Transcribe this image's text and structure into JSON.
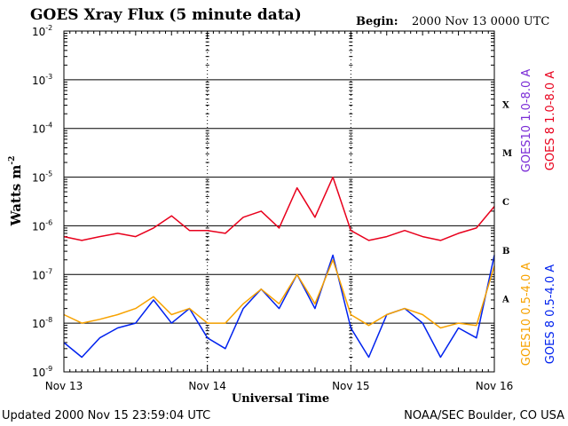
{
  "header": {
    "title": "GOES Xray Flux (5 minute data)",
    "begin_label": "Begin:",
    "begin_value": "2000 Nov 13 0000 UTC"
  },
  "footer": {
    "updated": "Updated 2000 Nov 15 23:59:04 UTC",
    "credit": "NOAA/SEC Boulder, CO USA"
  },
  "colors": {
    "goes10_long": "#7a2bd6",
    "goes8_long": "#e8001c",
    "goes10_short": "#f7a200",
    "goes8_short": "#0022ee",
    "axes": "#000000"
  },
  "chart_data": {
    "type": "line",
    "title": "GOES Xray Flux (5 minute data)",
    "xlabel": "Universal Time",
    "ylabel": "Watts m",
    "ylabel_superscript": "-2",
    "yscale": "log",
    "ylim": [
      1e-09,
      0.01
    ],
    "y_ticks": [
      {
        "base": "10",
        "exp": "-2",
        "value": 0.01
      },
      {
        "base": "10",
        "exp": "-3",
        "value": 0.001
      },
      {
        "base": "10",
        "exp": "-4",
        "value": 0.0001
      },
      {
        "base": "10",
        "exp": "-5",
        "value": 1e-05
      },
      {
        "base": "10",
        "exp": "-6",
        "value": 1e-06
      },
      {
        "base": "10",
        "exp": "-7",
        "value": 1e-07
      },
      {
        "base": "10",
        "exp": "-8",
        "value": 1e-08
      },
      {
        "base": "10",
        "exp": "-9",
        "value": 1e-09
      }
    ],
    "x_ticks": [
      "Nov 13",
      "Nov 14",
      "Nov 15",
      "Nov 16"
    ],
    "xlim": [
      "2000-11-13T00:00",
      "2000-11-16T00:00"
    ],
    "flare_classes": [
      {
        "label": "X",
        "value": 0.0001
      },
      {
        "label": "M",
        "value": 1e-05
      },
      {
        "label": "C",
        "value": 1e-06
      },
      {
        "label": "B",
        "value": 1e-07
      },
      {
        "label": "A",
        "value": 1e-08
      }
    ],
    "legend_right": [
      {
        "text": "GOES10 1.0-8.0 A",
        "color": "#7a2bd6"
      },
      {
        "text": "GOES 8 1.0-8.0 A",
        "color": "#e8001c"
      },
      {
        "text": "GOES10 0.5-4.0 A",
        "color": "#f7a200"
      },
      {
        "text": "GOES 8 0.5-4.0 A",
        "color": "#0022ee"
      }
    ],
    "series": [
      {
        "name": "GOES 8 1.0-8.0 A",
        "color": "#e8001c",
        "x": [
          "2000-11-13T00:00",
          "2000-11-13T03:00",
          "2000-11-13T06:00",
          "2000-11-13T09:00",
          "2000-11-13T12:00",
          "2000-11-13T15:00",
          "2000-11-13T18:00",
          "2000-11-13T21:00",
          "2000-11-14T00:00",
          "2000-11-14T03:00",
          "2000-11-14T06:00",
          "2000-11-14T09:00",
          "2000-11-14T12:00",
          "2000-11-14T15:00",
          "2000-11-14T18:00",
          "2000-11-14T21:00",
          "2000-11-15T00:00",
          "2000-11-15T03:00",
          "2000-11-15T06:00",
          "2000-11-15T09:00",
          "2000-11-15T12:00",
          "2000-11-15T15:00",
          "2000-11-15T18:00",
          "2000-11-15T21:00",
          "2000-11-16T00:00"
        ],
        "y": [
          6e-07,
          5e-07,
          6e-07,
          7e-07,
          6e-07,
          9e-07,
          1.6e-06,
          8e-07,
          8e-07,
          7e-07,
          1.5e-06,
          2e-06,
          9e-07,
          6e-06,
          1.5e-06,
          1e-05,
          8e-07,
          5e-07,
          6e-07,
          8e-07,
          6e-07,
          5e-07,
          7e-07,
          9e-07,
          2.5e-06
        ]
      },
      {
        "name": "GOES 8 0.5-4.0 A",
        "color": "#0022ee",
        "x": [
          "2000-11-13T00:00",
          "2000-11-13T03:00",
          "2000-11-13T06:00",
          "2000-11-13T09:00",
          "2000-11-13T12:00",
          "2000-11-13T15:00",
          "2000-11-13T18:00",
          "2000-11-13T21:00",
          "2000-11-14T00:00",
          "2000-11-14T03:00",
          "2000-11-14T06:00",
          "2000-11-14T09:00",
          "2000-11-14T12:00",
          "2000-11-14T15:00",
          "2000-11-14T18:00",
          "2000-11-14T21:00",
          "2000-11-15T00:00",
          "2000-11-15T03:00",
          "2000-11-15T06:00",
          "2000-11-15T09:00",
          "2000-11-15T12:00",
          "2000-11-15T15:00",
          "2000-11-15T18:00",
          "2000-11-15T21:00",
          "2000-11-16T00:00"
        ],
        "y": [
          4e-09,
          2e-09,
          5e-09,
          8e-09,
          1e-08,
          3e-08,
          1e-08,
          2e-08,
          5e-09,
          3e-09,
          2e-08,
          5e-08,
          2e-08,
          1e-07,
          2e-08,
          2.5e-07,
          8e-09,
          2e-09,
          1.5e-08,
          2e-08,
          1e-08,
          2e-09,
          8e-09,
          5e-09,
          2.5e-07
        ]
      },
      {
        "name": "GOES10 0.5-4.0 A",
        "color": "#f7a200",
        "x": [
          "2000-11-13T00:00",
          "2000-11-13T03:00",
          "2000-11-13T06:00",
          "2000-11-13T09:00",
          "2000-11-13T12:00",
          "2000-11-13T15:00",
          "2000-11-13T18:00",
          "2000-11-13T21:00",
          "2000-11-14T00:00",
          "2000-11-14T03:00",
          "2000-11-14T06:00",
          "2000-11-14T09:00",
          "2000-11-14T12:00",
          "2000-11-14T15:00",
          "2000-11-14T18:00",
          "2000-11-14T21:00",
          "2000-11-15T00:00",
          "2000-11-15T03:00",
          "2000-11-15T06:00",
          "2000-11-15T09:00",
          "2000-11-15T12:00",
          "2000-11-15T15:00",
          "2000-11-15T18:00",
          "2000-11-15T21:00",
          "2000-11-16T00:00"
        ],
        "y": [
          1.5e-08,
          1e-08,
          1.2e-08,
          1.5e-08,
          2e-08,
          3.5e-08,
          1.5e-08,
          2e-08,
          1e-08,
          1e-08,
          2.5e-08,
          5e-08,
          2.5e-08,
          1e-07,
          2.5e-08,
          2e-07,
          1.5e-08,
          9e-09,
          1.5e-08,
          2e-08,
          1.5e-08,
          8e-09,
          1e-08,
          9e-09,
          1.5e-07
        ]
      }
    ]
  }
}
